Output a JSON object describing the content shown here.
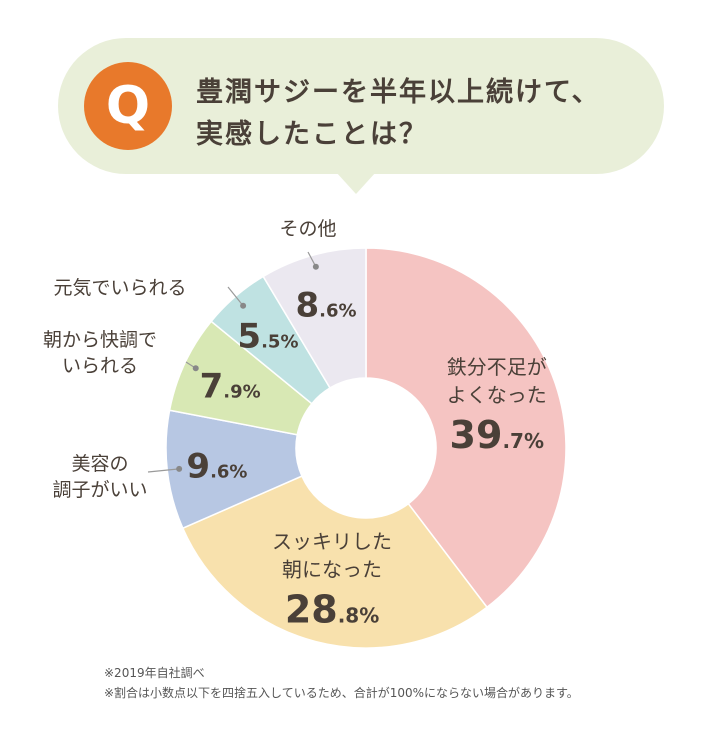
{
  "header": {
    "q_letter": "Q",
    "question_line1": "豊潤サジーを半年以上続けて、",
    "question_line2": "実感したことは？"
  },
  "chart_data": {
    "type": "pie",
    "variant": "donut",
    "unit": "%",
    "slices": [
      {
        "label_lines": [
          "鉄分不足が",
          "よくなった"
        ],
        "int": "39",
        "dec": ".7%",
        "value": 39.7,
        "color": "#f5c4c2"
      },
      {
        "label_lines": [
          "スッキリした",
          "朝になった"
        ],
        "int": "28",
        "dec": ".8%",
        "value": 28.8,
        "color": "#f8e1ad"
      },
      {
        "label_lines": [
          "美容の",
          "調子がいい"
        ],
        "int": "9",
        "dec": ".6%",
        "value": 9.6,
        "color": "#b7c7e3"
      },
      {
        "label_lines": [
          "朝から快調で",
          "いられる"
        ],
        "int": "7",
        "dec": ".9%",
        "value": 7.9,
        "color": "#d8e8b4"
      },
      {
        "label_lines": [
          "元気でいられる"
        ],
        "int": "5",
        "dec": ".5%",
        "value": 5.5,
        "color": "#bfe2e2"
      },
      {
        "label_lines": [
          "その他"
        ],
        "int": "8",
        "dec": ".6%",
        "value": 8.6,
        "color": "#ebe8f0"
      }
    ]
  },
  "footnotes": [
    "※2019年自社調べ",
    "※割合は小数点以下を四捨五入しているため、合計が100%にならない場合があります。"
  ]
}
